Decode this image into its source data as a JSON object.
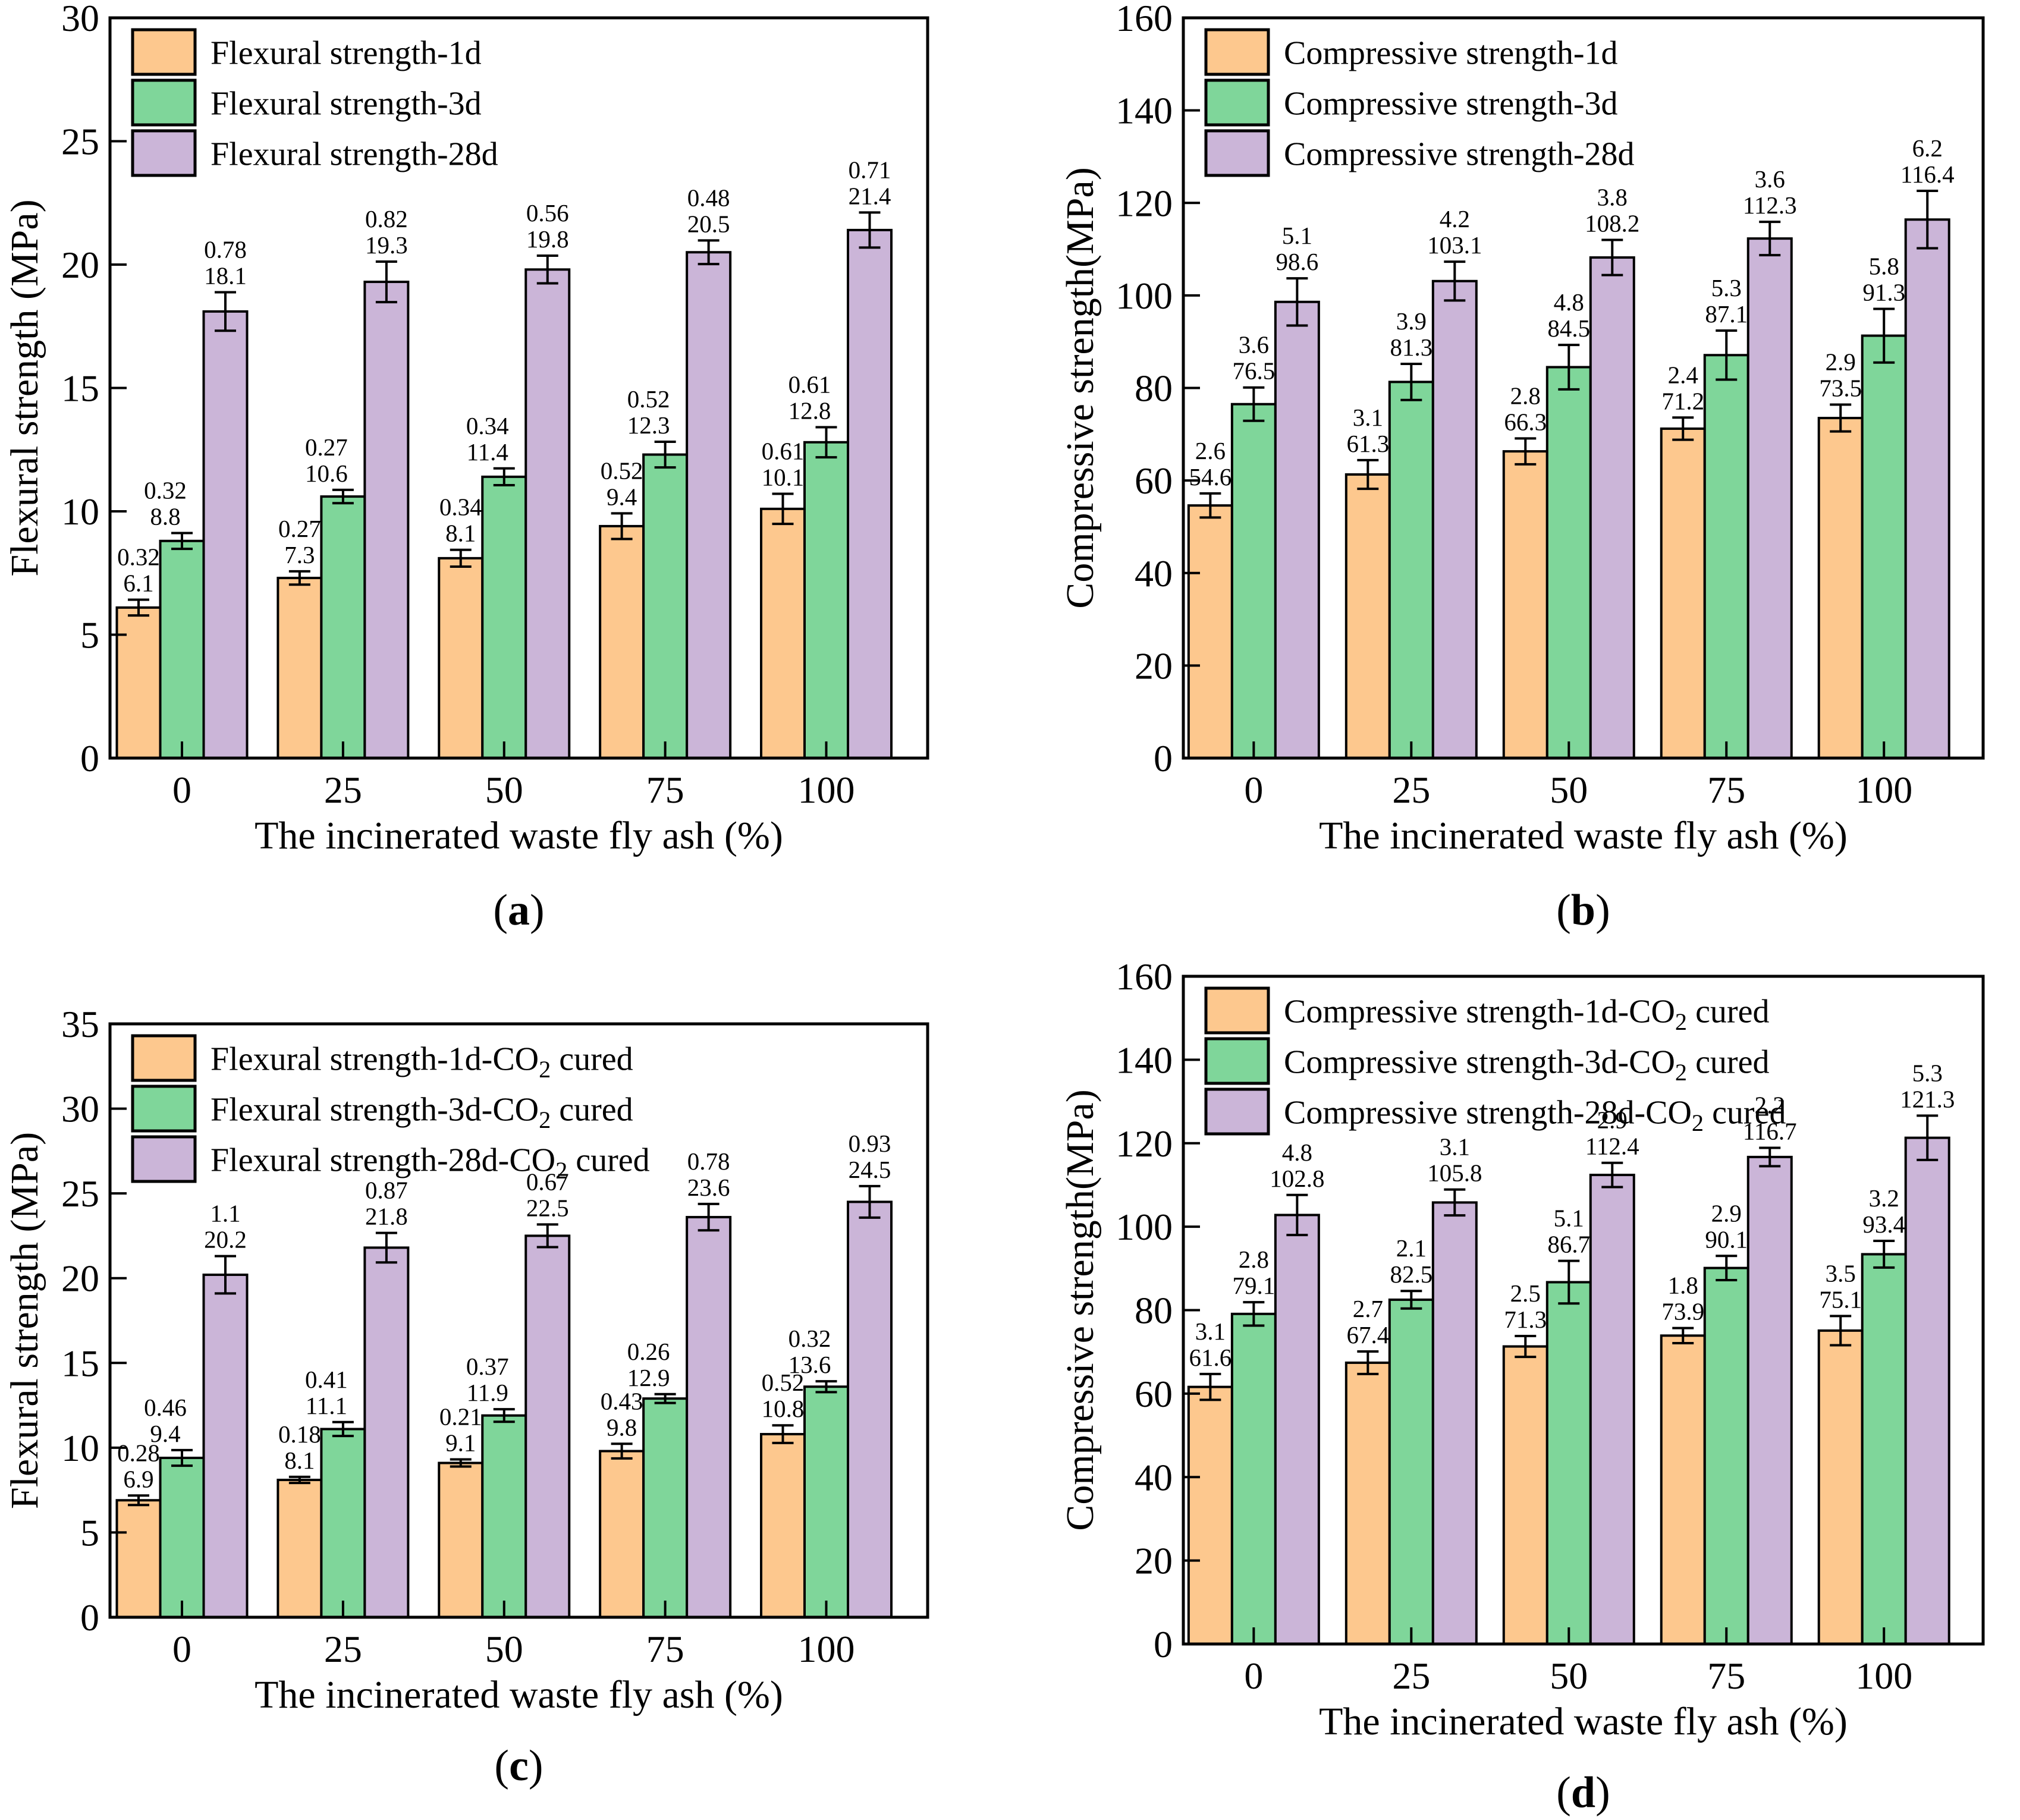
{
  "figure": {
    "background": "#ffffff",
    "text_color": "#000000",
    "xlabel": "The incinerated waste fly ash (%)",
    "categories": [
      "0",
      "25",
      "50",
      "75",
      "100"
    ],
    "colors": {
      "series_1d": "#FDC88E",
      "series_3d": "#7FD69A",
      "series_28d": "#CBB5D8",
      "outline": "#000000"
    },
    "panel_tags": [
      "(a)",
      "(b)",
      "(c)",
      "(d)"
    ]
  },
  "chart_data": [
    {
      "type": "bar",
      "panel": "a",
      "tag": "(a)",
      "xlabel": "The incinerated waste fly ash (%)",
      "ylabel": "Flexural strength (MPa)",
      "ylim": [
        0,
        30
      ],
      "ytick_step": 5,
      "categories": [
        "0",
        "25",
        "50",
        "75",
        "100"
      ],
      "legend_position": "top-left",
      "grid": false,
      "error_bars": true,
      "series": [
        {
          "name": "Flexural strength-1d",
          "color": "#FDC88E",
          "values": [
            6.1,
            7.3,
            8.1,
            9.4,
            10.1
          ],
          "errors": [
            0.32,
            0.27,
            0.34,
            0.52,
            0.61
          ]
        },
        {
          "name": "Flexural strength-3d",
          "color": "#7FD69A",
          "values": [
            8.8,
            10.6,
            11.4,
            12.3,
            12.8
          ],
          "errors": [
            0.32,
            0.27,
            0.34,
            0.52,
            0.61
          ]
        },
        {
          "name": "Flexural strength-28d",
          "color": "#CBB5D8",
          "values": [
            18.1,
            19.3,
            19.8,
            20.5,
            21.4
          ],
          "errors": [
            0.78,
            0.82,
            0.56,
            0.48,
            0.71
          ]
        }
      ]
    },
    {
      "type": "bar",
      "panel": "b",
      "tag": "(b)",
      "xlabel": "The incinerated waste fly ash (%)",
      "ylabel": "Compressive strength(MPa)",
      "ylim": [
        0,
        160
      ],
      "ytick_step": 20,
      "categories": [
        "0",
        "25",
        "50",
        "75",
        "100"
      ],
      "legend_position": "top-left",
      "grid": false,
      "error_bars": true,
      "series": [
        {
          "name": "Compressive strength-1d",
          "color": "#FDC88E",
          "values": [
            54.6,
            61.3,
            66.3,
            71.2,
            73.5
          ],
          "errors": [
            2.6,
            3.1,
            2.8,
            2.4,
            2.9
          ]
        },
        {
          "name": "Compressive strength-3d",
          "color": "#7FD69A",
          "values": [
            76.5,
            81.3,
            84.5,
            87.1,
            91.3
          ],
          "errors": [
            3.6,
            3.9,
            4.8,
            5.3,
            5.8
          ]
        },
        {
          "name": "Compressive strength-28d",
          "color": "#CBB5D8",
          "values": [
            98.6,
            103.1,
            108.2,
            112.3,
            116.4
          ],
          "errors": [
            5.1,
            4.2,
            3.8,
            3.6,
            6.2
          ]
        }
      ]
    },
    {
      "type": "bar",
      "panel": "c",
      "tag": "(c)",
      "xlabel": "The incinerated waste fly ash (%)",
      "ylabel": "Flexural strength (MPa)",
      "ylim": [
        0,
        35
      ],
      "ytick_step": 5,
      "categories": [
        "0",
        "25",
        "50",
        "75",
        "100"
      ],
      "legend_position": "top-left",
      "grid": false,
      "error_bars": true,
      "series": [
        {
          "name": "Flexural strength-1d-CO2 cured",
          "color": "#FDC88E",
          "values": [
            6.9,
            8.1,
            9.1,
            9.8,
            10.8
          ],
          "errors": [
            0.28,
            0.18,
            0.21,
            0.43,
            0.52
          ]
        },
        {
          "name": "Flexural strength-3d-CO2 cured",
          "color": "#7FD69A",
          "values": [
            9.4,
            11.1,
            11.9,
            12.9,
            13.6
          ],
          "errors": [
            0.46,
            0.41,
            0.37,
            0.26,
            0.32
          ]
        },
        {
          "name": "Flexural strength-28d-CO2 cured",
          "color": "#CBB5D8",
          "values": [
            20.2,
            21.8,
            22.5,
            23.6,
            24.5
          ],
          "errors": [
            1.1,
            0.87,
            0.67,
            0.78,
            0.93
          ]
        }
      ]
    },
    {
      "type": "bar",
      "panel": "d",
      "tag": "(d)",
      "xlabel": "The incinerated waste fly ash (%)",
      "ylabel": "Compressive strength(MPa)",
      "ylim": [
        0,
        160
      ],
      "ytick_step": 20,
      "categories": [
        "0",
        "25",
        "50",
        "75",
        "100"
      ],
      "legend_position": "top-left",
      "grid": false,
      "error_bars": true,
      "series": [
        {
          "name": "Compressive strength-1d-CO2 cured",
          "color": "#FDC88E",
          "values": [
            61.6,
            67.4,
            71.3,
            73.9,
            75.1
          ],
          "errors": [
            3.1,
            2.7,
            2.5,
            1.8,
            3.5
          ]
        },
        {
          "name": "Compressive strength-3d-CO2 cured",
          "color": "#7FD69A",
          "values": [
            79.1,
            82.5,
            86.7,
            90.1,
            93.4
          ],
          "errors": [
            2.8,
            2.1,
            5.1,
            2.9,
            3.2
          ]
        },
        {
          "name": "Compressive strength-28d-CO2 cured",
          "color": "#CBB5D8",
          "values": [
            102.8,
            105.8,
            112.4,
            116.7,
            121.3
          ],
          "errors": [
            4.8,
            3.1,
            2.9,
            2.2,
            5.3
          ]
        }
      ]
    }
  ]
}
